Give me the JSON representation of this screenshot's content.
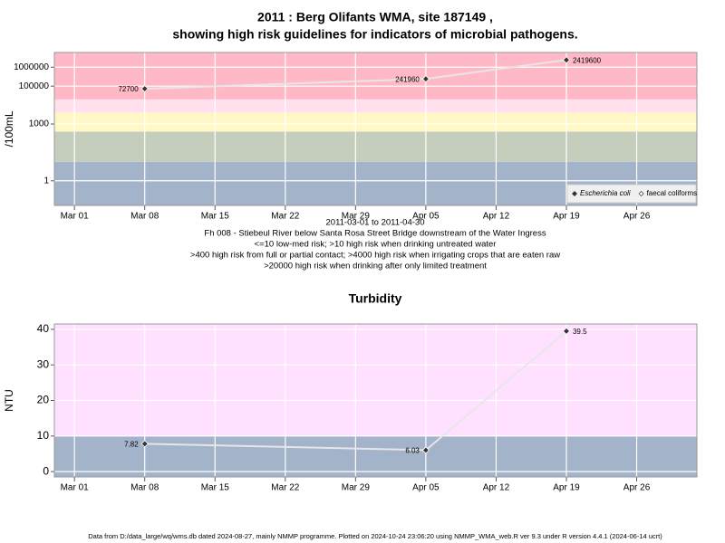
{
  "chart_data": [
    {
      "type": "line",
      "title": [
        "2011 : Berg Olifants WMA, site 187149 ,",
        "showing high risk guidelines for indicators of microbial pathogens."
      ],
      "ylabel": "/100mL",
      "xlabel": [
        "2011-03-01 to 2011-04-30",
        "Fh 008 - Stiebeul River below Santa Rosa Street Bridge downstream of the Water Ingress",
        "<=10 low-med risk; >10 high risk when drinking untreated water",
        ">400 high risk from full or partial contact; >4000 high risk when irrigating crops that are eaten raw",
        ">20000 high risk when drinking after only limited treatment"
      ],
      "log_scale": true,
      "ylim": [
        0.05,
        6000000
      ],
      "yticks": [
        1,
        1000,
        100000,
        1000000
      ],
      "xlim": [
        "2011-02-27",
        "2011-05-02"
      ],
      "xticks": [
        {
          "value": "2011-03-01",
          "label": "Mar 01"
        },
        {
          "value": "2011-03-08",
          "label": "Mar 08"
        },
        {
          "value": "2011-03-15",
          "label": "Mar 15"
        },
        {
          "value": "2011-03-22",
          "label": "Mar 22"
        },
        {
          "value": "2011-03-29",
          "label": "Mar 29"
        },
        {
          "value": "2011-04-05",
          "label": "Apr 05"
        },
        {
          "value": "2011-04-12",
          "label": "Apr 12"
        },
        {
          "value": "2011-04-19",
          "label": "Apr 19"
        },
        {
          "value": "2011-04-26",
          "label": "Apr 26"
        }
      ],
      "thresholds": [
        10,
        400,
        4000,
        20000
      ],
      "band_colors": [
        "#a3b3ca",
        "#c5cdbd",
        "#fff8c4",
        "#ffe0ec",
        "#ffb9c6"
      ],
      "grid": true,
      "legend": "bottom-right",
      "x": [
        "2011-03-08",
        "2011-04-05",
        "2011-04-19"
      ],
      "series": [
        {
          "name": "Escherichia coli",
          "color": "#333333",
          "filled": true,
          "italic": true,
          "values": [
            72700,
            241960,
            2419600
          ]
        },
        {
          "name": "faecal coliforms",
          "color": "#333333",
          "filled": false,
          "italic": false,
          "values": [
            null,
            null,
            null
          ]
        }
      ]
    },
    {
      "type": "line",
      "title": [
        "Turbidity"
      ],
      "ylabel": "NTU",
      "log_scale": false,
      "ylim": [
        -1.5,
        41.5
      ],
      "yticks": [
        0,
        10,
        20,
        30,
        40
      ],
      "xlim": [
        "2011-02-27",
        "2011-05-02"
      ],
      "xticks": [
        {
          "value": "2011-03-01",
          "label": "Mar 01"
        },
        {
          "value": "2011-03-08",
          "label": "Mar 08"
        },
        {
          "value": "2011-03-15",
          "label": "Mar 15"
        },
        {
          "value": "2011-03-22",
          "label": "Mar 22"
        },
        {
          "value": "2011-03-29",
          "label": "Mar 29"
        },
        {
          "value": "2011-04-05",
          "label": "Apr 05"
        },
        {
          "value": "2011-04-12",
          "label": "Apr 12"
        },
        {
          "value": "2011-04-19",
          "label": "Apr 19"
        },
        {
          "value": "2011-04-26",
          "label": "Apr 26"
        }
      ],
      "thresholds": [
        10
      ],
      "band_colors": [
        "#a3b3ca",
        "#ffe0ff"
      ],
      "grid": true,
      "x": [
        "2011-03-08",
        "2011-04-05",
        "2011-04-19"
      ],
      "series": [
        {
          "color": "#333333",
          "filled": true,
          "values": [
            7.82,
            6.03,
            39.5
          ]
        }
      ]
    }
  ],
  "footer": "Data from D:/data_large/wq/wms.db dated 2024-08-27, mainly NMMP programme. Plotted on 2024-10-24 23:06:20 using NMMP_WMA_web.R ver 9.3 under R version 4.4.1 (2024-06-14 ucrt)"
}
